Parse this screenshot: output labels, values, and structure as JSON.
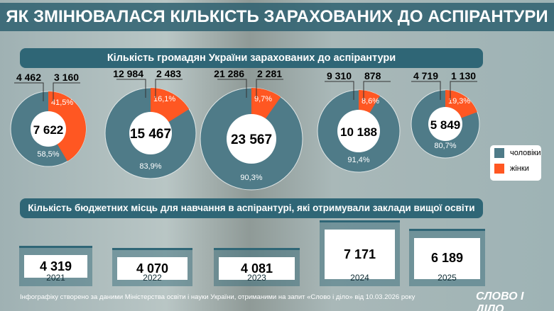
{
  "title": "ЯК ЗМІНЮВАЛАСЯ КІЛЬКІСТЬ ЗАРАХОВАНИХ ДО АСПІРАНТУРИ",
  "colors": {
    "men": "#4f7b88",
    "women": "#ff5722",
    "header": "#2f6676"
  },
  "chart_data": [
    {
      "type": "pie",
      "title": "Кількість громадян України зарахованих до аспірантури",
      "legend": [
        "чоловіки",
        "жінки"
      ],
      "legend_placement": "right",
      "donuts": [
        {
          "total": "7 622",
          "men": "4 462",
          "women": "3 160",
          "men_pct": "58,5",
          "women_pct": "41,5"
        },
        {
          "total": "15 467",
          "men": "12 984",
          "women": "2 483",
          "men_pct": "83,9",
          "women_pct": "16,1"
        },
        {
          "total": "23 567",
          "men": "21 286",
          "women": "2 281",
          "men_pct": "90,3",
          "women_pct": "9,7"
        },
        {
          "total": "10 188",
          "men": "9 310",
          "women": "878",
          "men_pct": "91,4",
          "women_pct": "8,6"
        },
        {
          "total": "5 849",
          "men": "4 719",
          "women": "1 130",
          "men_pct": "80,7",
          "women_pct": "19,3"
        }
      ]
    },
    {
      "type": "bar",
      "title": "Кількість бюджетних місць для навчання в аспірантурі, які отримували заклади вищої освіти",
      "categories": [
        "2021",
        "2022",
        "2023",
        "2024",
        "2025"
      ],
      "values": [
        4319,
        4070,
        4081,
        7171,
        6189
      ],
      "labels": [
        "4 319",
        "4 070",
        "4 081",
        "7 171",
        "6 189"
      ]
    }
  ],
  "footer": "Інфографіку створено за даними Міністерства освіти і науки України, отриманими на запит «Слово і діло» від 10.03.2026 року",
  "logo": "СЛОВО І ДІЛО"
}
